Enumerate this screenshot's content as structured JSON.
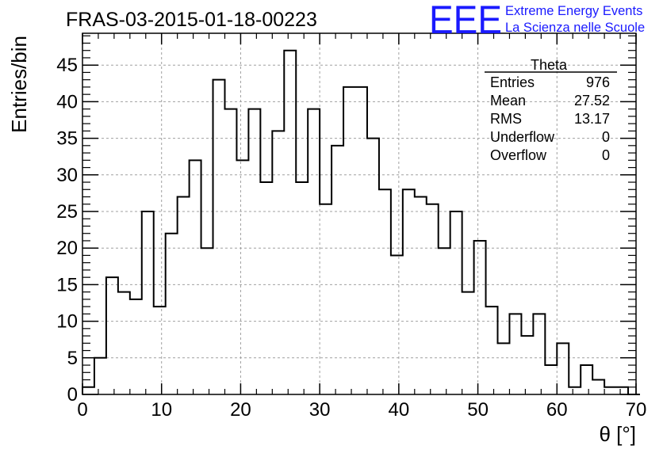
{
  "chart_data": {
    "type": "bar",
    "title": "FRAS-03-2015-01-18-00223",
    "xlabel": "θ [°]",
    "ylabel": "Entries/bin",
    "xlim": [
      0,
      70
    ],
    "ylim": [
      0,
      49.35
    ],
    "grid": true,
    "bin_width": 1.5,
    "x_ticks": [
      "0",
      "10",
      "20",
      "30",
      "40",
      "50",
      "60",
      "70"
    ],
    "y_ticks": [
      "0",
      "5",
      "10",
      "15",
      "20",
      "25",
      "30",
      "35",
      "40",
      "45"
    ],
    "values": [
      1,
      5,
      16,
      14,
      13,
      25,
      12,
      22,
      27,
      32,
      20,
      43,
      39,
      32,
      39,
      29,
      36,
      47,
      29,
      39,
      26,
      34,
      42,
      42,
      35,
      28,
      19,
      28,
      27,
      26,
      20,
      25,
      14,
      21,
      12,
      7,
      11,
      8,
      11,
      4,
      7,
      1,
      4,
      2,
      1,
      1,
      0
    ],
    "stats": {
      "title": "Theta",
      "rows": [
        {
          "label": "Entries",
          "value": "976"
        },
        {
          "label": "Mean",
          "value": "27.52"
        },
        {
          "label": "RMS",
          "value": "13.17"
        },
        {
          "label": "Underflow",
          "value": "0"
        },
        {
          "label": "Overflow",
          "value": "0"
        }
      ]
    }
  },
  "logo": {
    "mark": "EEE",
    "line1": "Extreme Energy Events",
    "line2": "La Scienza nelle Scuole"
  },
  "colors": {
    "logo": "#1a1aff",
    "grid": "#a0a0a0",
    "line": "#000000"
  }
}
